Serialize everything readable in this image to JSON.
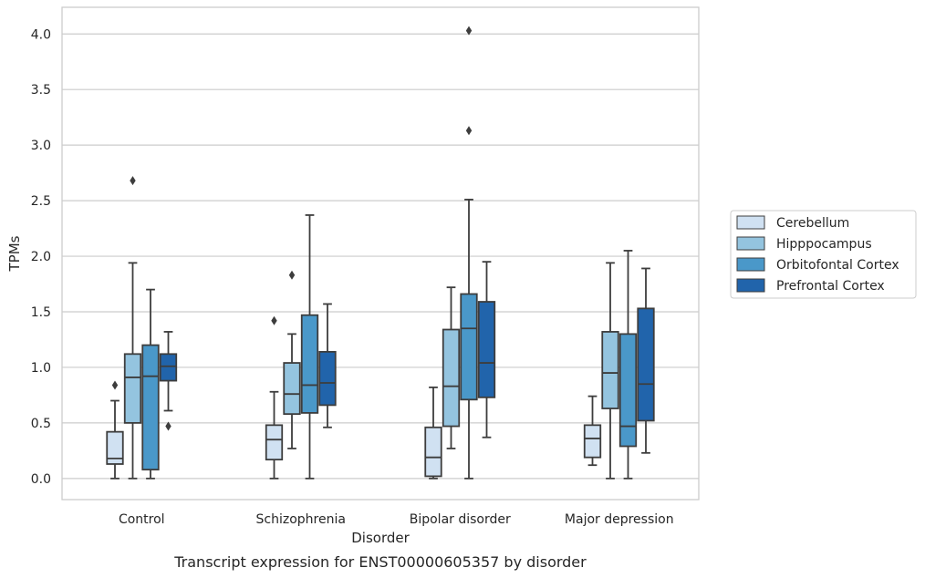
{
  "chart_data": {
    "type": "box",
    "title": "",
    "caption": "Transcript expression for ENST00000605357 by disorder",
    "xlabel": "Disorder",
    "ylabel": "TPMs",
    "ylim": [
      -0.19,
      4.24
    ],
    "yticks": [
      0.0,
      0.5,
      1.0,
      1.5,
      2.0,
      2.5,
      3.0,
      3.5,
      4.0
    ],
    "ytick_labels": [
      "0.0",
      "0.5",
      "1.0",
      "1.5",
      "2.0",
      "2.5",
      "3.0",
      "3.5",
      "4.0"
    ],
    "grid": "horizontal",
    "legend_position": "right-outside",
    "categories": [
      "Control",
      "Schizophrenia",
      "Bipolar disorder",
      "Major depression"
    ],
    "series": [
      {
        "name": "Cerebellum",
        "color": "#d0e1f2",
        "boxes": [
          {
            "whislo": 0.0,
            "q1": 0.13,
            "med": 0.18,
            "q3": 0.42,
            "whishi": 0.7,
            "fliers": [
              0.84
            ]
          },
          {
            "whislo": 0.0,
            "q1": 0.17,
            "med": 0.35,
            "q3": 0.48,
            "whishi": 0.78,
            "fliers": [
              1.42
            ]
          },
          {
            "whislo": 0.0,
            "q1": 0.02,
            "med": 0.19,
            "q3": 0.46,
            "whishi": 0.82,
            "fliers": []
          },
          {
            "whislo": 0.12,
            "q1": 0.19,
            "med": 0.36,
            "q3": 0.48,
            "whishi": 0.74,
            "fliers": []
          }
        ]
      },
      {
        "name": "Hipppocampus",
        "color": "#94c4df",
        "boxes": [
          {
            "whislo": 0.0,
            "q1": 0.5,
            "med": 0.91,
            "q3": 1.12,
            "whishi": 1.94,
            "fliers": [
              2.68
            ]
          },
          {
            "whislo": 0.27,
            "q1": 0.58,
            "med": 0.76,
            "q3": 1.04,
            "whishi": 1.3,
            "fliers": [
              1.83
            ]
          },
          {
            "whislo": 0.27,
            "q1": 0.47,
            "med": 0.83,
            "q3": 1.34,
            "whishi": 1.72,
            "fliers": []
          },
          {
            "whislo": 0.0,
            "q1": 0.63,
            "med": 0.95,
            "q3": 1.32,
            "whishi": 1.94,
            "fliers": []
          }
        ]
      },
      {
        "name": "Orbitofontal Cortex",
        "color": "#4a98c9",
        "boxes": [
          {
            "whislo": 0.0,
            "q1": 0.08,
            "med": 0.92,
            "q3": 1.2,
            "whishi": 1.7,
            "fliers": []
          },
          {
            "whislo": 0.0,
            "q1": 0.59,
            "med": 0.84,
            "q3": 1.47,
            "whishi": 2.37,
            "fliers": []
          },
          {
            "whislo": 0.0,
            "q1": 0.71,
            "med": 1.35,
            "q3": 1.66,
            "whishi": 2.51,
            "fliers": [
              3.13,
              4.03
            ]
          },
          {
            "whislo": 0.0,
            "q1": 0.29,
            "med": 0.47,
            "q3": 1.3,
            "whishi": 2.05,
            "fliers": []
          }
        ]
      },
      {
        "name": "Prefrontal Cortex",
        "color": "#2164ab",
        "boxes": [
          {
            "whislo": 0.61,
            "q1": 0.88,
            "med": 1.01,
            "q3": 1.12,
            "whishi": 1.32,
            "fliers": [
              0.47
            ]
          },
          {
            "whislo": 0.46,
            "q1": 0.66,
            "med": 0.86,
            "q3": 1.14,
            "whishi": 1.57,
            "fliers": []
          },
          {
            "whislo": 0.37,
            "q1": 0.73,
            "med": 1.04,
            "q3": 1.59,
            "whishi": 1.95,
            "fliers": []
          },
          {
            "whislo": 0.23,
            "q1": 0.52,
            "med": 0.85,
            "q3": 1.53,
            "whishi": 1.89,
            "fliers": []
          }
        ]
      }
    ]
  }
}
